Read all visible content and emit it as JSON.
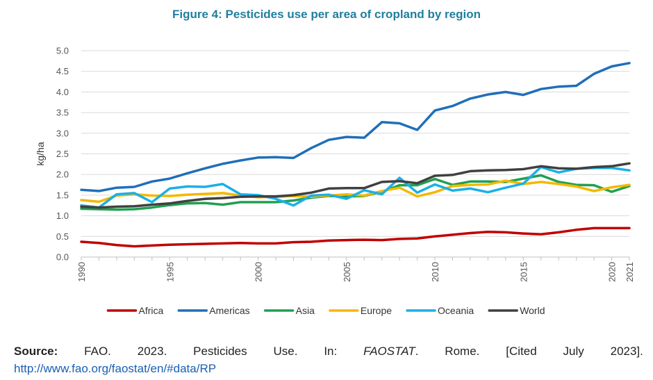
{
  "chart_data": {
    "type": "line",
    "title": "Figure 4: Pesticides use per area of cropland by region",
    "ylabel": "kg/ha",
    "xlabel": "",
    "ylim": [
      0,
      5
    ],
    "yticks": [
      "0.0",
      "0.5",
      "1.0",
      "1.5",
      "2.0",
      "2.5",
      "3.0",
      "3.5",
      "4.0",
      "4.5",
      "5.0"
    ],
    "xlim": [
      1990,
      2021
    ],
    "xticks": [
      "1990",
      "1995",
      "2000",
      "2005",
      "2010",
      "2015",
      "2020",
      "2021"
    ],
    "grid": "horizontal",
    "legend_position": "bottom",
    "x": [
      1990,
      1991,
      1992,
      1993,
      1994,
      1995,
      1996,
      1997,
      1998,
      1999,
      2000,
      2001,
      2002,
      2003,
      2004,
      2005,
      2006,
      2007,
      2008,
      2009,
      2010,
      2011,
      2012,
      2013,
      2014,
      2015,
      2016,
      2017,
      2018,
      2019,
      2020,
      2021
    ],
    "series": [
      {
        "name": "Africa",
        "color": "#c00000",
        "values": [
          0.37,
          0.34,
          0.29,
          0.26,
          0.28,
          0.3,
          0.31,
          0.32,
          0.33,
          0.34,
          0.33,
          0.33,
          0.36,
          0.37,
          0.4,
          0.41,
          0.42,
          0.41,
          0.44,
          0.45,
          0.5,
          0.54,
          0.58,
          0.61,
          0.6,
          0.57,
          0.55,
          0.6,
          0.66,
          0.7,
          0.7,
          0.7
        ]
      },
      {
        "name": "Americas",
        "color": "#1f6fb8",
        "values": [
          1.63,
          1.6,
          1.68,
          1.7,
          1.83,
          1.9,
          2.03,
          2.15,
          2.26,
          2.34,
          2.41,
          2.42,
          2.4,
          2.64,
          2.84,
          2.91,
          2.89,
          3.27,
          3.24,
          3.08,
          3.55,
          3.66,
          3.84,
          3.94,
          4.0,
          3.93,
          4.07,
          4.13,
          4.15,
          4.44,
          4.62,
          4.7
        ]
      },
      {
        "name": "Asia",
        "color": "#20a050",
        "values": [
          1.17,
          1.16,
          1.15,
          1.16,
          1.2,
          1.26,
          1.3,
          1.31,
          1.27,
          1.33,
          1.33,
          1.33,
          1.37,
          1.44,
          1.48,
          1.47,
          1.48,
          1.58,
          1.74,
          1.74,
          1.89,
          1.75,
          1.83,
          1.83,
          1.82,
          1.9,
          1.98,
          1.82,
          1.75,
          1.74,
          1.58,
          1.72
        ]
      },
      {
        "name": "Europe",
        "color": "#f4b800",
        "values": [
          1.38,
          1.34,
          1.49,
          1.52,
          1.49,
          1.48,
          1.51,
          1.53,
          1.55,
          1.49,
          1.45,
          1.46,
          1.48,
          1.46,
          1.49,
          1.52,
          1.49,
          1.6,
          1.68,
          1.47,
          1.57,
          1.72,
          1.75,
          1.76,
          1.85,
          1.77,
          1.82,
          1.77,
          1.71,
          1.6,
          1.69,
          1.75
        ]
      },
      {
        "name": "Oceania",
        "color": "#1ab0e6",
        "values": [
          1.25,
          1.2,
          1.52,
          1.55,
          1.33,
          1.66,
          1.71,
          1.7,
          1.77,
          1.52,
          1.5,
          1.41,
          1.25,
          1.49,
          1.51,
          1.41,
          1.62,
          1.52,
          1.92,
          1.56,
          1.76,
          1.61,
          1.66,
          1.57,
          1.68,
          1.78,
          2.18,
          2.05,
          2.14,
          2.16,
          2.16,
          2.1
        ]
      },
      {
        "name": "World",
        "color": "#404040",
        "values": [
          1.22,
          1.2,
          1.22,
          1.23,
          1.27,
          1.3,
          1.36,
          1.41,
          1.43,
          1.46,
          1.47,
          1.47,
          1.5,
          1.56,
          1.66,
          1.67,
          1.67,
          1.82,
          1.84,
          1.79,
          1.97,
          1.99,
          2.08,
          2.1,
          2.11,
          2.13,
          2.2,
          2.15,
          2.14,
          2.18,
          2.2,
          2.27
        ]
      }
    ]
  },
  "source": {
    "label": "Source:",
    "org": "FAO.",
    "year": "2023.",
    "w1": "Pesticides",
    "w2": "Use.",
    "w3": "In:",
    "italic": "FAOSTAT",
    "after_italic": ".",
    "w4": "Rome.",
    "w5": "[Cited",
    "w6": "July",
    "w7": "2023].",
    "url": "http://www.fao.org/faostat/en/#data/RP"
  }
}
